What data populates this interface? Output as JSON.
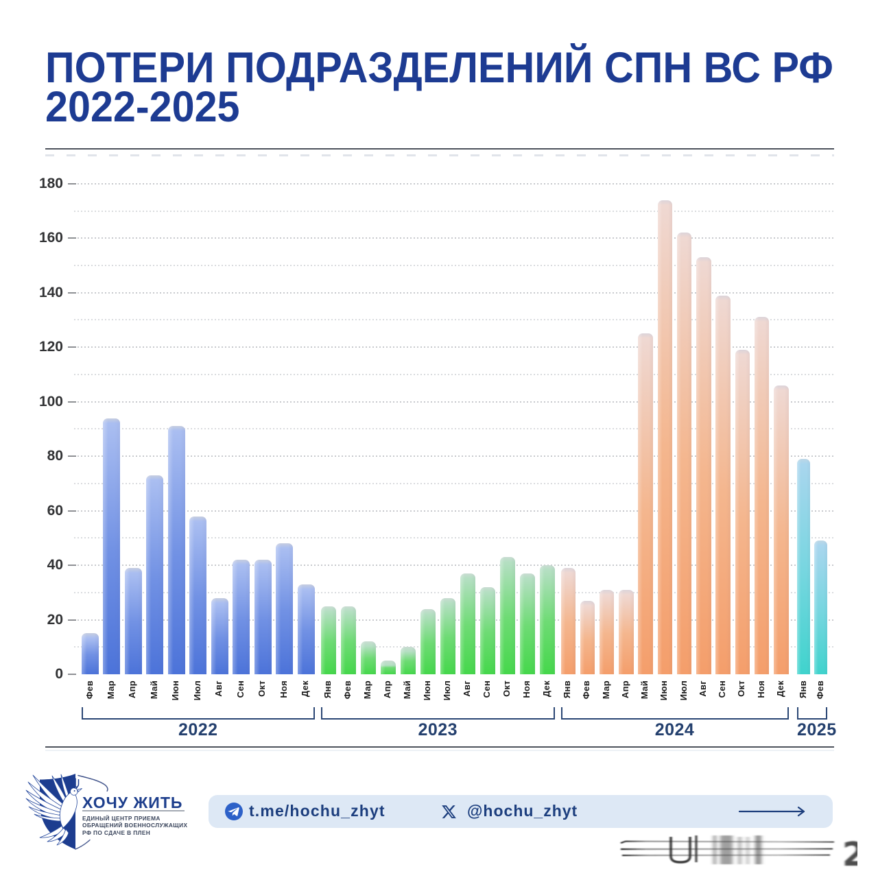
{
  "title": {
    "line1": "ПОТЕРИ ПОДРАЗДЕЛЕНИЙ СПН ВС РФ",
    "line2": "2022-2025"
  },
  "chart_data": {
    "type": "bar",
    "title": "ПОТЕРИ ПОДРАЗДЕЛЕНИЙ СПН ВС РФ 2022-2025",
    "xlabel": "",
    "ylabel": "",
    "ylim": [
      0,
      180
    ],
    "ytick_step": 20,
    "grid_step": 10,
    "grid": "dotted horizontal",
    "legend": "none",
    "groups": [
      {
        "year": "2022",
        "months": [
          "Фев",
          "Мар",
          "Апр",
          "Май",
          "Июн",
          "Июл",
          "Авг",
          "Сен",
          "Окт",
          "Ноя",
          "Дек"
        ],
        "values": [
          15,
          94,
          39,
          73,
          91,
          58,
          28,
          42,
          42,
          48,
          33
        ],
        "color_top": "#aabef1",
        "color_mid": "#7191e4",
        "color_bottom": "#4c73d9",
        "color_cap": "#c6cde0"
      },
      {
        "year": "2023",
        "months": [
          "Янв",
          "Фев",
          "Мар",
          "Апр",
          "Май",
          "Июн",
          "Июл",
          "Авг",
          "Сен",
          "Окт",
          "Ноя",
          "Дек"
        ],
        "values": [
          25,
          25,
          12,
          5,
          10,
          24,
          28,
          37,
          32,
          43,
          37,
          40
        ],
        "color_top": "#b5dfc3",
        "color_mid": "#6edb74",
        "color_bottom": "#45d74b",
        "color_cap": "#c9dcd2"
      },
      {
        "year": "2024",
        "months": [
          "Янв",
          "Фев",
          "Мар",
          "Апр",
          "Май",
          "Июн",
          "Июл",
          "Авг",
          "Сен",
          "Окт",
          "Ноя",
          "Дек"
        ],
        "values": [
          39,
          27,
          31,
          31,
          125,
          174,
          162,
          153,
          139,
          119,
          131,
          106
        ],
        "color_top": "#efd8d2",
        "color_mid": "#f4b68e",
        "color_bottom": "#f49e6b",
        "color_cap": "#dcd4da"
      },
      {
        "year": "2025",
        "months": [
          "Янв",
          "Фев"
        ],
        "values": [
          79,
          49
        ],
        "color_top": "#a9d6ee",
        "color_mid": "#77d6e0",
        "color_bottom": "#40d3cd",
        "color_cap": "#bdd7e6"
      }
    ]
  },
  "footer": {
    "logo": {
      "title": "ХОЧУ ЖИТЬ",
      "sub_line1": "ЕДИНЫЙ ЦЕНТР ПРИЕМА",
      "sub_line2": "ОБРАЩЕНИЙ ВОЕННОСЛУЖАЩИХ",
      "sub_line3": "РФ ПО СДАЧЕ В ПЛЕН"
    },
    "links": {
      "telegram_label": "t.me/hochu_zhyt",
      "x_label": "@hochu_zhyt"
    }
  },
  "colors": {
    "title": "#1d3b92",
    "divider": "#4d525c",
    "year_label": "#24406e",
    "bracket": "#2a4674",
    "axis_label": "#353637",
    "month_label": "#1b1b1b",
    "grid_major": "#c7c9cd",
    "grid_minor": "#d9dbde",
    "pill_bg": "#dde8f5",
    "link_text": "#1c3e7e",
    "telegram_icon_bg": "#2d61c8",
    "logo_navy": "#1d3d8f"
  }
}
